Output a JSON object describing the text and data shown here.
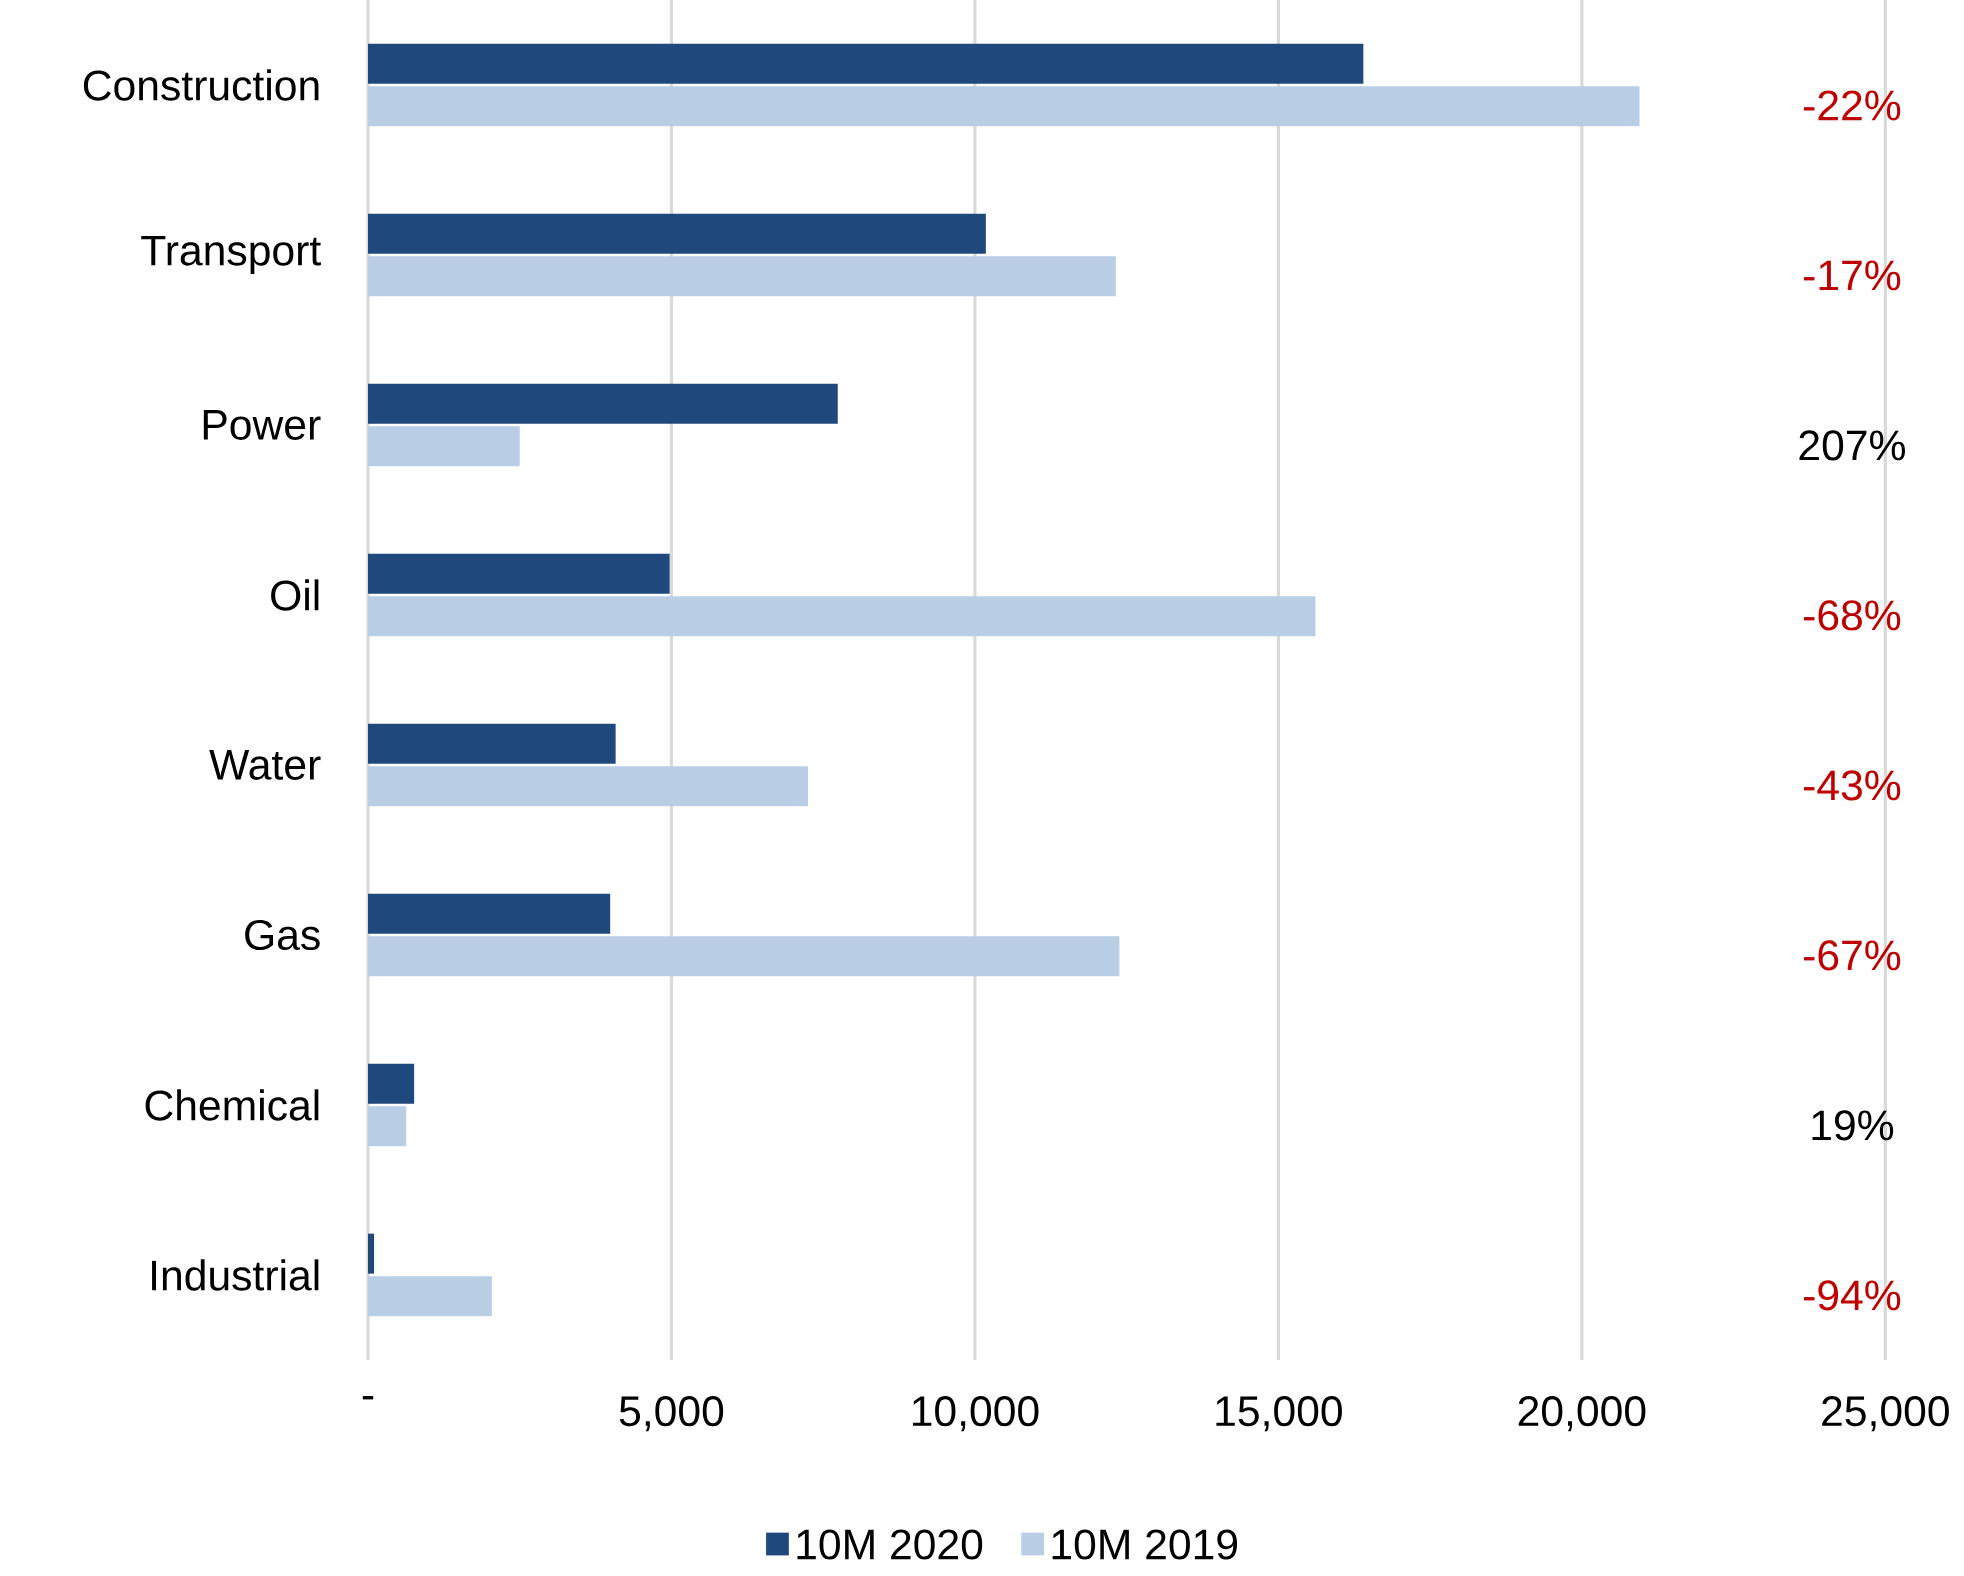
{
  "chart_data": {
    "type": "bar",
    "orientation": "horizontal",
    "categories": [
      "Construction",
      "Transport",
      "Power",
      "Oil",
      "Water",
      "Gas",
      "Chemical",
      "Industrial"
    ],
    "series": [
      {
        "name": "10M 2020",
        "color": "#1f497d",
        "values": [
          16400,
          10180,
          7740,
          4970,
          4080,
          3990,
          760,
          100
        ]
      },
      {
        "name": "10M 2019",
        "color": "#b9cde5",
        "values": [
          20950,
          12320,
          2500,
          15610,
          7250,
          12380,
          630,
          2040
        ]
      }
    ],
    "xlim": [
      0,
      25000
    ],
    "xticks": [
      {
        "value": 0,
        "label": "-"
      },
      {
        "value": 5000,
        "label": "5,000"
      },
      {
        "value": 10000,
        "label": "10,000"
      },
      {
        "value": 15000,
        "label": "15,000"
      },
      {
        "value": 20000,
        "label": "20,000"
      },
      {
        "value": 25000,
        "label": "25,000"
      }
    ],
    "grid": "x",
    "legend": "bottom",
    "annotations": [
      "-22%",
      "-17%",
      "207%",
      "-68%",
      "-43%",
      "-67%",
      "19%",
      "-94%"
    ]
  }
}
